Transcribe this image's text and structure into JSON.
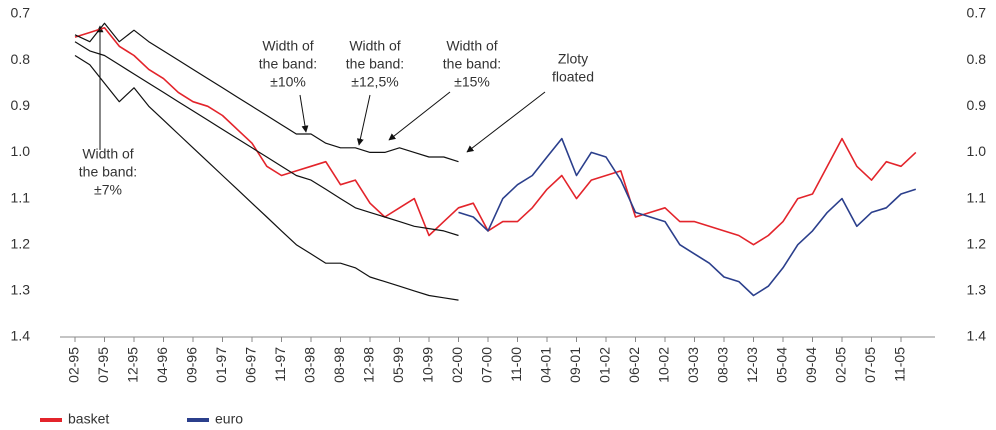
{
  "chart_data": {
    "type": "line",
    "x": [
      "02-95",
      null,
      "07-95",
      null,
      "12-95",
      null,
      "04-96",
      null,
      "09-96",
      null,
      "01-97",
      null,
      "06-97",
      null,
      "11-97",
      null,
      "03-98",
      null,
      "08-98",
      null,
      "12-98",
      null,
      "05-99",
      null,
      "10-99",
      null,
      "02-00",
      null,
      "07-00",
      null,
      "11-00",
      null,
      "04-01",
      null,
      "09-01",
      null,
      "01-02",
      null,
      "06-02",
      null,
      "10-02",
      null,
      "03-03",
      null,
      "08-03",
      null,
      "12-03",
      null,
      "05-04",
      null,
      "09-04",
      null,
      "02-05",
      null,
      "07-05",
      null,
      "11-05",
      null
    ],
    "series": [
      {
        "name": "basket",
        "color": "#e3242b",
        "values": [
          0.75,
          0.74,
          0.73,
          0.77,
          0.79,
          0.82,
          0.84,
          0.87,
          0.89,
          0.9,
          0.92,
          0.95,
          0.98,
          1.03,
          1.05,
          1.04,
          1.03,
          1.02,
          1.07,
          1.06,
          1.11,
          1.14,
          1.12,
          1.1,
          1.18,
          1.15,
          1.12,
          1.11,
          1.17,
          1.15,
          1.15,
          1.12,
          1.08,
          1.05,
          1.1,
          1.06,
          1.05,
          1.04,
          1.14,
          1.13,
          1.12,
          1.15,
          1.15,
          1.16,
          1.17,
          1.18,
          1.2,
          1.18,
          1.15,
          1.1,
          1.09,
          1.03,
          0.97,
          1.03,
          1.06,
          1.02,
          1.03,
          1.0
        ]
      },
      {
        "name": "euro",
        "color": "#2b3f8c",
        "values": [
          null,
          null,
          null,
          null,
          null,
          null,
          null,
          null,
          null,
          null,
          null,
          null,
          null,
          null,
          null,
          null,
          null,
          null,
          null,
          null,
          null,
          null,
          null,
          null,
          null,
          null,
          1.13,
          1.14,
          1.17,
          1.1,
          1.07,
          1.05,
          1.01,
          0.97,
          1.05,
          1.0,
          1.01,
          1.06,
          1.13,
          1.14,
          1.15,
          1.2,
          1.22,
          1.24,
          1.27,
          1.28,
          1.31,
          1.29,
          1.25,
          1.2,
          1.17,
          1.13,
          1.1,
          1.16,
          1.13,
          1.12,
          1.09,
          1.08
        ]
      },
      {
        "color": "#111111",
        "values": [
          0.745,
          0.76,
          0.72,
          0.76,
          0.735,
          0.76,
          0.78,
          0.8,
          0.82,
          0.84,
          0.86,
          0.88,
          0.9,
          0.92,
          0.94,
          0.96,
          0.96,
          0.98,
          0.99,
          0.99,
          1.0,
          1.0,
          0.99,
          1.0,
          1.01,
          1.01,
          1.02,
          null,
          null,
          null,
          null,
          null,
          null,
          null,
          null,
          null,
          null,
          null,
          null,
          null,
          null,
          null,
          null,
          null,
          null,
          null,
          null,
          null,
          null,
          null,
          null,
          null,
          null,
          null,
          null,
          null,
          null,
          null
        ]
      },
      {
        "color": "#111111",
        "values": [
          0.76,
          0.78,
          0.79,
          0.81,
          0.83,
          0.85,
          0.87,
          0.89,
          0.91,
          0.93,
          0.95,
          0.97,
          0.99,
          1.01,
          1.03,
          1.05,
          1.06,
          1.08,
          1.1,
          1.12,
          1.13,
          1.14,
          1.15,
          1.16,
          1.165,
          1.17,
          1.18,
          null,
          null,
          null,
          null,
          null,
          null,
          null,
          null,
          null,
          null,
          null,
          null,
          null,
          null,
          null,
          null,
          null,
          null,
          null,
          null,
          null,
          null,
          null,
          null,
          null,
          null,
          null,
          null,
          null,
          null,
          null
        ]
      },
      {
        "color": "#111111",
        "values": [
          0.79,
          0.81,
          0.85,
          0.89,
          0.86,
          0.9,
          0.93,
          0.96,
          0.99,
          1.02,
          1.05,
          1.08,
          1.11,
          1.14,
          1.17,
          1.2,
          1.22,
          1.24,
          1.24,
          1.25,
          1.27,
          1.28,
          1.29,
          1.3,
          1.31,
          1.315,
          1.32,
          null,
          null,
          null,
          null,
          null,
          null,
          null,
          null,
          null,
          null,
          null,
          null,
          null,
          null,
          null,
          null,
          null,
          null,
          null,
          null,
          null,
          null,
          null,
          null,
          null,
          null,
          null,
          null,
          null,
          null,
          null
        ]
      }
    ],
    "ylim": [
      0.7,
      1.4
    ],
    "y_inverted": true,
    "yticks": [
      0.7,
      0.8,
      0.9,
      {
        "value": 1,
        "label": "1.0"
      },
      1.1,
      1.2,
      1.3,
      1.4
    ],
    "annotations": [
      {
        "lines": [
          "Width of",
          "the band:",
          "±7%"
        ]
      },
      {
        "lines": [
          "Width of",
          "the band:",
          "±10%"
        ]
      },
      {
        "lines": [
          "Width of",
          "the band:",
          "±12,5%"
        ]
      },
      {
        "lines": [
          "Width of",
          "the band:",
          "±15%"
        ]
      },
      {
        "lines": [
          "Zloty",
          "floated"
        ]
      }
    ]
  }
}
